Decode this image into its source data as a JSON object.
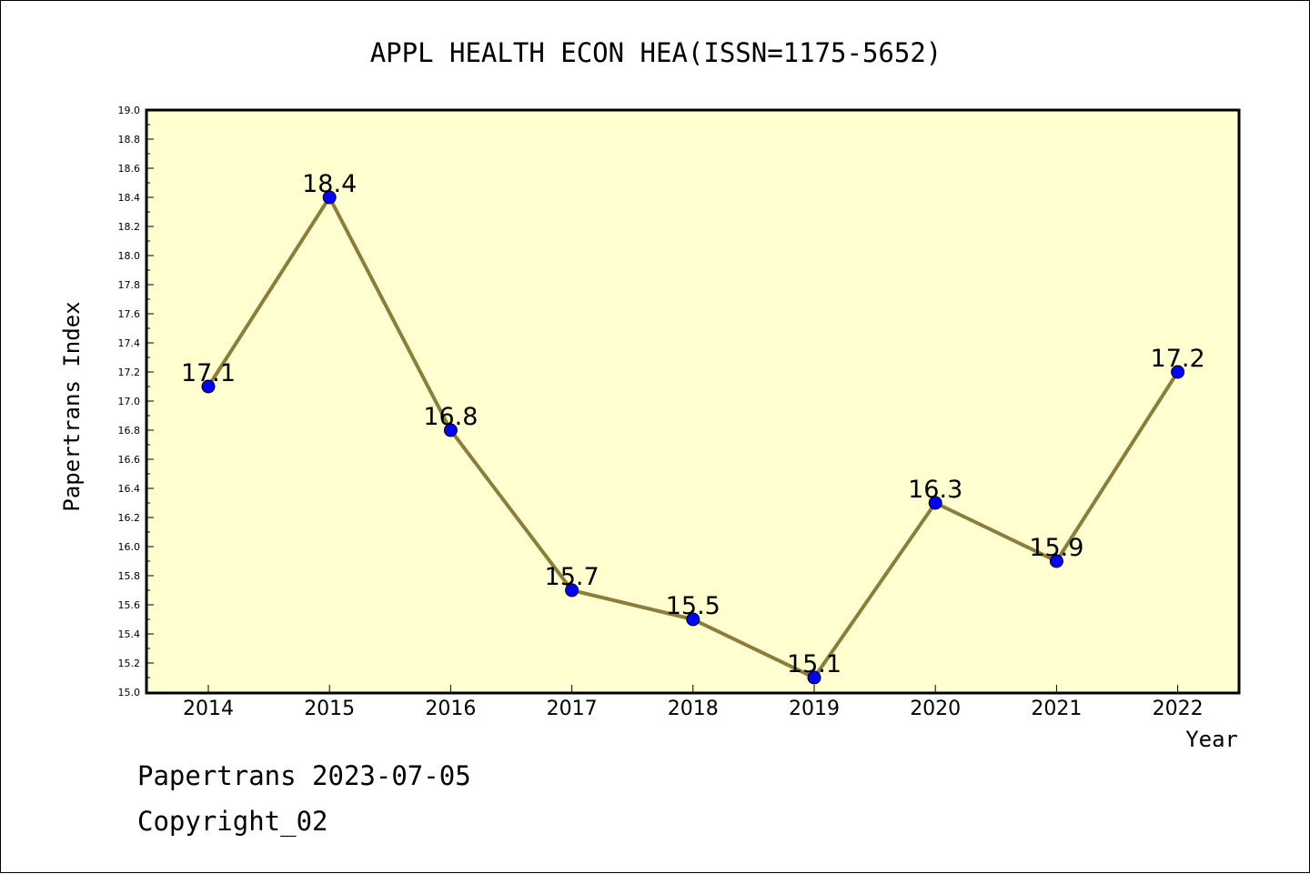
{
  "chart_data": {
    "type": "line",
    "title": "APPL HEALTH ECON HEA(ISSN=1175-5652)",
    "xlabel": "Year",
    "ylabel": "Papertrans Index",
    "categories": [
      "2014",
      "2015",
      "2016",
      "2017",
      "2018",
      "2019",
      "2020",
      "2021",
      "2022"
    ],
    "values": [
      17.1,
      18.4,
      16.8,
      15.7,
      15.5,
      15.1,
      16.3,
      15.9,
      17.2
    ],
    "data_labels": [
      "17.1",
      "18.4",
      "16.8",
      "15.7",
      "15.5",
      "15.1",
      "16.3",
      "15.9",
      "17.2"
    ],
    "ylim": [
      15.0,
      19.0
    ],
    "yticks": [
      "15.0",
      "15.2",
      "15.4",
      "15.6",
      "15.8",
      "16.0",
      "16.2",
      "16.4",
      "16.6",
      "16.8",
      "17.0",
      "17.2",
      "17.4",
      "17.6",
      "17.8",
      "18.0",
      "18.2",
      "18.4",
      "18.6",
      "18.8",
      "19.0"
    ],
    "grid": false,
    "colors": {
      "plot_background": "#ffffd0",
      "line": "#8b7d3a",
      "marker": "#0000ff"
    }
  },
  "footer": {
    "date_line": "Papertrans 2023-07-05",
    "copyright": "Copyright_02"
  }
}
